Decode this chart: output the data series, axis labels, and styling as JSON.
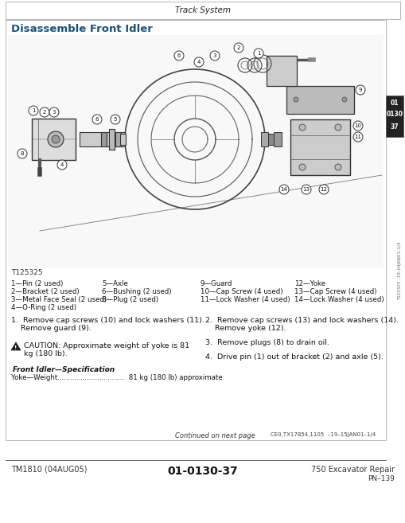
{
  "page_bg": "#ffffff",
  "header_text": "Track System",
  "section_title": "Disassemble Front Idler",
  "section_title_color": "#1a5276",
  "tab_lines": [
    "01",
    "0130",
    "37"
  ],
  "tab_bg": "#222222",
  "tab_text_color": "#ffffff",
  "figure_label": "T125325",
  "parts_col1": [
    "1—Pin (2 used)",
    "2—Bracket (2 used)",
    "3—Metal Face Seal (2 used)",
    "4—O-Ring (2 used)"
  ],
  "parts_col2": [
    "5—Axle",
    "6—Bushing (2 used)",
    "8—Plug (2 used)",
    ""
  ],
  "parts_col3": [
    "9—Guard",
    "10—Cap Screw (4 used)",
    "11—Lock Washer (4 used)",
    ""
  ],
  "parts_col4": [
    "12—Yoke",
    "13—Cap Screw (4 used)",
    "14—Lock Washer (4 used)",
    ""
  ],
  "inst1_line1": "1.  Remove cap screws (10) and lock washers (11).",
  "inst1_line2": "    Remove guard (9).",
  "inst2_line1": "2.  Remove cap screws (13) and lock washers (14).",
  "inst2_line2": "    Remove yoke (12).",
  "inst3": "3.  Remove plugs (8) to drain oil.",
  "inst4": "4.  Drive pin (1) out of bracket (2) and axle (5).",
  "caution_line1": "CAUTION: Approximate weight of yoke is 81",
  "caution_line2": "kg (180 lb).",
  "spec_title": "Front Idler—Specification",
  "spec_text": "Yoke—Weight................................  81 kg (180 lb) approximate",
  "continued_text": "Continued on next page",
  "continued_code": "CE0,TX17854,1105  –19–15JAN01–1/4",
  "footer_left": "TM1810 (04AUG05)",
  "footer_center": "01-0130-37",
  "footer_right": "750 Excavator Repair",
  "footer_sub": "PN–139",
  "sidebar_text": "T125325 –19–04JAN01–1/4"
}
